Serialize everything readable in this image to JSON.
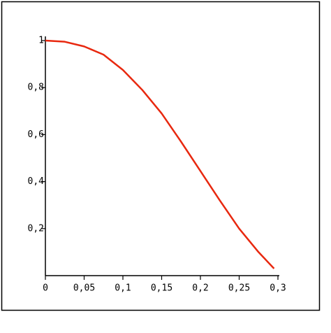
{
  "chart_data": {
    "type": "line",
    "x": [
      0,
      0.025,
      0.05,
      0.075,
      0.1,
      0.125,
      0.15,
      0.175,
      0.2,
      0.225,
      0.25,
      0.275,
      0.295
    ],
    "series": [
      {
        "color": "#e8280f",
        "values": [
          1,
          0.995,
          0.975,
          0.94,
          0.875,
          0.79,
          0.69,
          0.57,
          0.445,
          0.32,
          0.2,
          0.1,
          0.03
        ]
      }
    ],
    "xlim": [
      0,
      0.3
    ],
    "xticks": [
      0,
      {
        "value": 0.05,
        "label": "0,05"
      },
      {
        "value": 0.1,
        "label": "0,1"
      },
      {
        "value": 0.15,
        "label": "0,15"
      },
      {
        "value": 0.2,
        "label": "0,2"
      },
      {
        "value": 0.25,
        "label": "0,25"
      },
      {
        "value": 0.3,
        "label": "0,3"
      }
    ],
    "ylim": [
      0,
      1
    ],
    "yticks": [
      {
        "value": 0.2,
        "label": "0,2"
      },
      {
        "value": 0.4,
        "label": "0,4"
      },
      {
        "value": 0.6,
        "label": "0,6"
      },
      {
        "value": 0.8,
        "label": "0,8"
      },
      1
    ]
  }
}
